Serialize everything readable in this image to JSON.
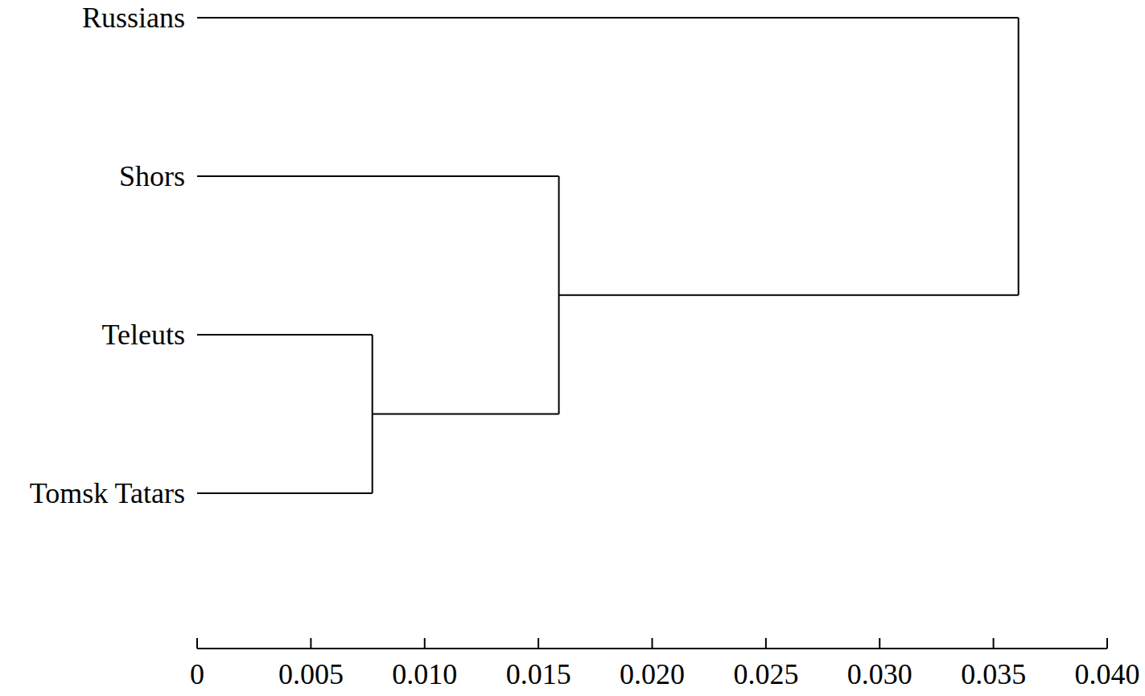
{
  "chart_data": {
    "type": "dendrogram",
    "leaves": [
      "Russians",
      "Shors",
      "Teleuts",
      "Tomsk Tatars"
    ],
    "merges": [
      {
        "pair": [
          2,
          3
        ],
        "height": 0.0077
      },
      {
        "pair": [
          1,
          4
        ],
        "height": 0.0159
      },
      {
        "pair": [
          0,
          5
        ],
        "height": 0.0361
      }
    ],
    "color": "#000000",
    "xlim": [
      0,
      0.04
    ],
    "xticks": [
      0,
      0.005,
      {
        "value": 0.01,
        "label": "0.010"
      },
      0.015,
      {
        "value": 0.02,
        "label": "0.020"
      },
      0.025,
      {
        "value": 0.03,
        "label": "0.030"
      },
      0.035,
      {
        "value": 0.04,
        "label": "0.040"
      }
    ]
  }
}
